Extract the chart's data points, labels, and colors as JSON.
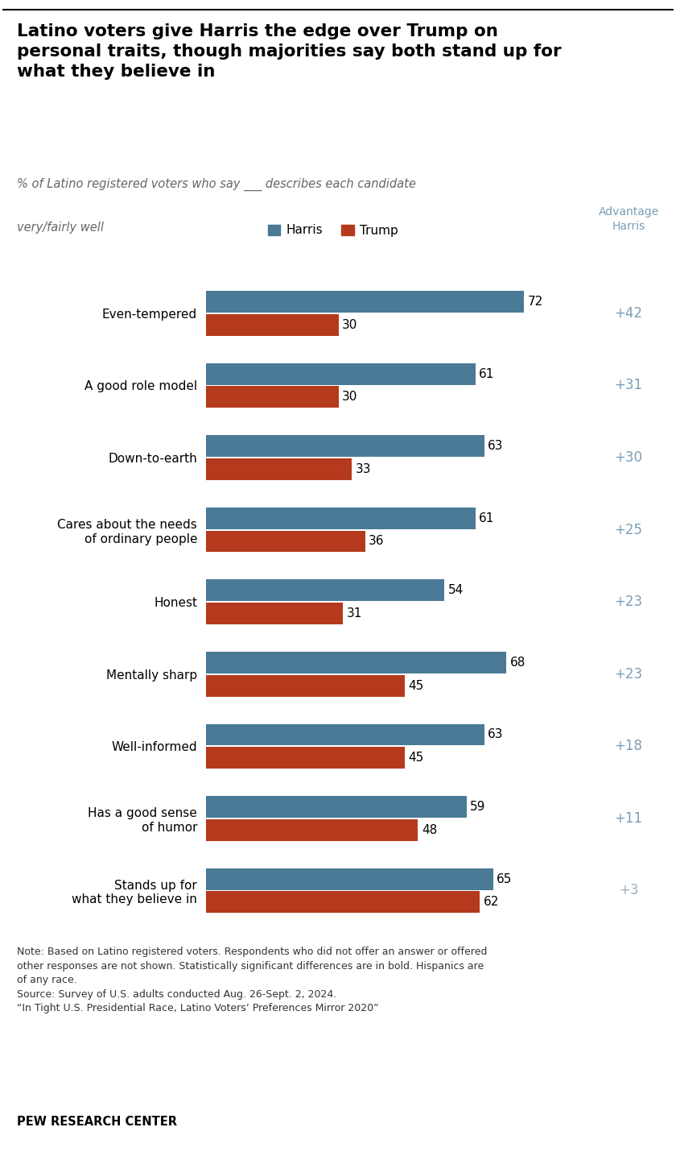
{
  "title": "Latino voters give Harris the edge over Trump on\npersonal traits, though majorities say both stand up for\nwhat they believe in",
  "subtitle_line1": "% of Latino registered voters who say ___ describes each candidate",
  "subtitle_line2": "very/fairly well",
  "categories": [
    "Even-tempered",
    "A good role model",
    "Down-to-earth",
    "Cares about the needs\nof ordinary people",
    "Honest",
    "Mentally sharp",
    "Well-informed",
    "Has a good sense\nof humor",
    "Stands up for\nwhat they believe in"
  ],
  "harris_values": [
    72,
    61,
    63,
    61,
    54,
    68,
    63,
    59,
    65
  ],
  "trump_values": [
    30,
    30,
    33,
    36,
    31,
    45,
    45,
    48,
    62
  ],
  "advantages": [
    "+42",
    "+31",
    "+30",
    "+25",
    "+23",
    "+23",
    "+18",
    "+11",
    "+3"
  ],
  "harris_color": "#4a7a96",
  "trump_color": "#b5391c",
  "advantage_color": "#7a9db5",
  "advantage_last_color": "#9ab0c0",
  "background_color": "#ffffff",
  "sidebar_color": "#ede9e4",
  "note_text": "Note: Based on Latino registered voters. Respondents who did not offer an answer or offered\nother responses are not shown. Statistically significant differences are in bold. Hispanics are\nof any race.\nSource: Survey of U.S. adults conducted Aug. 26-Sept. 2, 2024.\n“In Tight U.S. Presidential Race, Latino Voters’ Preferences Mirror 2020”",
  "footer_text": "PEW RESEARCH CENTER",
  "xlim": [
    0,
    85
  ]
}
